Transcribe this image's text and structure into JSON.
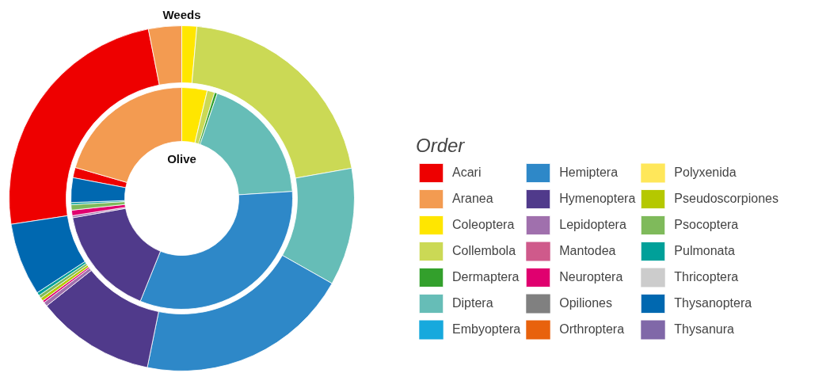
{
  "chart_data": {
    "type": "donut",
    "legend_title": "Order",
    "legend": "right",
    "categories": [
      "Acari",
      "Aranea",
      "Coleoptera",
      "Collembola",
      "Dermaptera",
      "Diptera",
      "Embyoptera",
      "Hemiptera",
      "Hymenoptera",
      "Lepidoptera",
      "Mantodea",
      "Neuroptera",
      "Opiliones",
      "Orthroptera",
      "Polyxenida",
      "Pseudoscorpiones",
      "Psocoptera",
      "Pulmonata",
      "Thricoptera",
      "Thysanoptera",
      "Thysanura"
    ],
    "colors": [
      "#ee0000",
      "#f39b51",
      "#ffe600",
      "#cbd955",
      "#33a02c",
      "#66bdb7",
      "#17a9dd",
      "#2e88c8",
      "#503a8b",
      "#a070ad",
      "#cf5a8b",
      "#e0006f",
      "#808080",
      "#e8620d",
      "#ffe75a",
      "#b5c800",
      "#7fba5b",
      "#00a099",
      "#cccccc",
      "#0068b0",
      "#8068a8"
    ],
    "series": [
      {
        "name": "Olive",
        "values": [
          1.5,
          20.5,
          3.7,
          1.1,
          0.4,
          18.8,
          0,
          32.1,
          16.1,
          0.3,
          0,
          0.8,
          0,
          0,
          0,
          0,
          0.8,
          0.3,
          0,
          3.6,
          0
        ]
      },
      {
        "name": "Weeds",
        "values": [
          24.3,
          3.1,
          1.4,
          20.8,
          0,
          11,
          0,
          20,
          11.1,
          0.4,
          0,
          0.2,
          0,
          0,
          0,
          0.3,
          0.3,
          0.3,
          0,
          6.8,
          0
        ]
      }
    ]
  }
}
